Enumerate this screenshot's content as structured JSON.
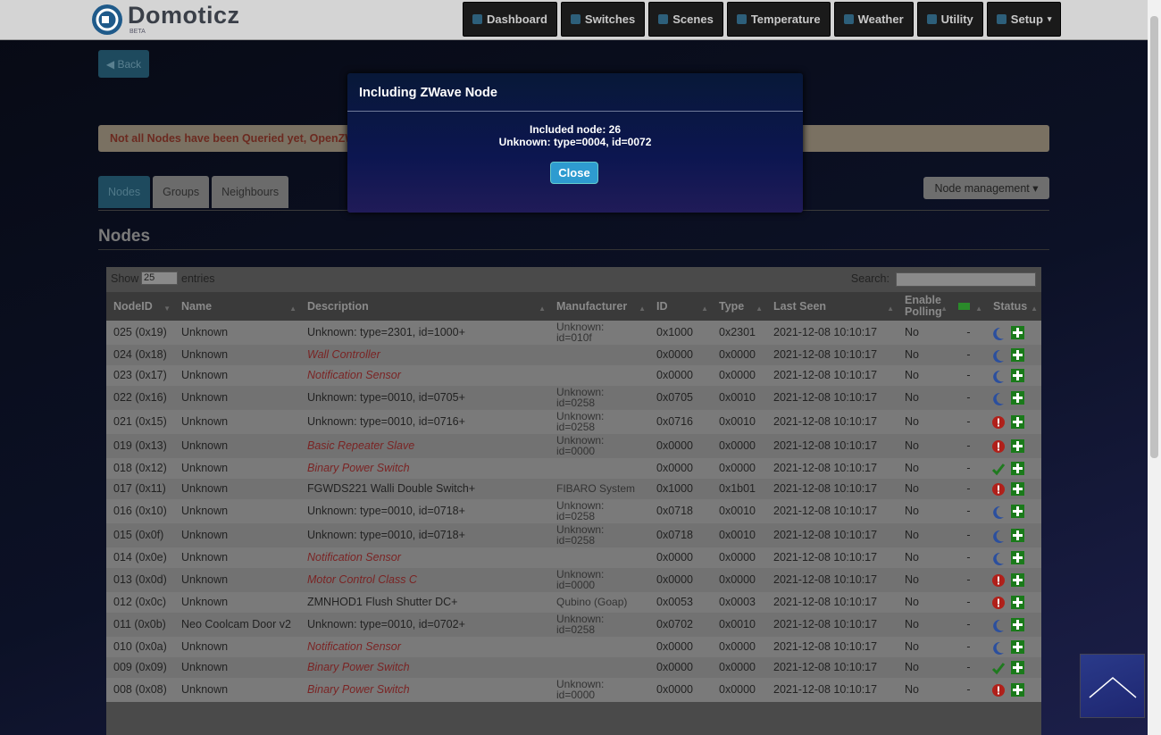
{
  "header": {
    "brand": "Domoticz",
    "badge": "BETA"
  },
  "nav": [
    "Dashboard",
    "Switches",
    "Scenes",
    "Temperature",
    "Weather",
    "Utility",
    "Setup"
  ],
  "page": {
    "back": "Back",
    "warning": "Not all Nodes have been Queried yet, OpenZW",
    "node_management": "Node management",
    "heading": "Nodes"
  },
  "tabs": [
    "Nodes",
    "Groups",
    "Neighbours"
  ],
  "table": {
    "show": "Show",
    "length": "25",
    "entries": "entries",
    "search": "Search:",
    "columns": [
      "NodeID",
      "Name",
      "Description",
      "Manufacturer",
      "ID",
      "Type",
      "Last Seen",
      "Enable Polling",
      null,
      "Status"
    ],
    "rows": [
      {
        "node_id": "025 (0x19)",
        "name": "Unknown",
        "description": "Unknown: type=2301, id=1000+",
        "manufacturer": "Unknown: id=010f",
        "id": "0x1000",
        "type": "0x2301",
        "last_seen": "2021-12-08 10:10:17",
        "polling": "No",
        "battery": "-",
        "status": "sleeping",
        "generic": false
      },
      {
        "node_id": "024 (0x18)",
        "name": "Unknown",
        "description": "Wall Controller",
        "manufacturer": null,
        "id": "0x0000",
        "type": "0x0000",
        "last_seen": "2021-12-08 10:10:17",
        "polling": "No",
        "battery": "-",
        "status": "sleeping",
        "generic": true
      },
      {
        "node_id": "023 (0x17)",
        "name": "Unknown",
        "description": "Notification Sensor",
        "manufacturer": null,
        "id": "0x0000",
        "type": "0x0000",
        "last_seen": "2021-12-08 10:10:17",
        "polling": "No",
        "battery": "-",
        "status": "sleeping",
        "generic": true
      },
      {
        "node_id": "022 (0x16)",
        "name": "Unknown",
        "description": "Unknown: type=0010, id=0705+",
        "manufacturer": "Unknown: id=0258",
        "id": "0x0705",
        "type": "0x0010",
        "last_seen": "2021-12-08 10:10:17",
        "polling": "No",
        "battery": "-",
        "status": "sleeping",
        "generic": false
      },
      {
        "node_id": "021 (0x15)",
        "name": "Unknown",
        "description": "Unknown: type=0010, id=0716+",
        "manufacturer": "Unknown: id=0258",
        "id": "0x0716",
        "type": "0x0010",
        "last_seen": "2021-12-08 10:10:17",
        "polling": "No",
        "battery": "-",
        "status": "dead",
        "generic": false
      },
      {
        "node_id": "019 (0x13)",
        "name": "Unknown",
        "description": "Basic Repeater Slave",
        "manufacturer": "Unknown: id=0000",
        "id": "0x0000",
        "type": "0x0000",
        "last_seen": "2021-12-08 10:10:17",
        "polling": "No",
        "battery": "-",
        "status": "dead",
        "generic": true
      },
      {
        "node_id": "018 (0x12)",
        "name": "Unknown",
        "description": "Binary Power Switch",
        "manufacturer": null,
        "id": "0x0000",
        "type": "0x0000",
        "last_seen": "2021-12-08 10:10:17",
        "polling": "No",
        "battery": "-",
        "status": "ok",
        "generic": true
      },
      {
        "node_id": "017 (0x11)",
        "name": "Unknown",
        "description": "FGWDS221 Walli Double Switch+",
        "manufacturer": "FIBARO System",
        "id": "0x1000",
        "type": "0x1b01",
        "last_seen": "2021-12-08 10:10:17",
        "polling": "No",
        "battery": "-",
        "status": "dead",
        "generic": false
      },
      {
        "node_id": "016 (0x10)",
        "name": "Unknown",
        "description": "Unknown: type=0010, id=0718+",
        "manufacturer": "Unknown: id=0258",
        "id": "0x0718",
        "type": "0x0010",
        "last_seen": "2021-12-08 10:10:17",
        "polling": "No",
        "battery": "-",
        "status": "sleeping",
        "generic": false
      },
      {
        "node_id": "015 (0x0f)",
        "name": "Unknown",
        "description": "Unknown: type=0010, id=0718+",
        "manufacturer": "Unknown: id=0258",
        "id": "0x0718",
        "type": "0x0010",
        "last_seen": "2021-12-08 10:10:17",
        "polling": "No",
        "battery": "-",
        "status": "sleeping",
        "generic": false
      },
      {
        "node_id": "014 (0x0e)",
        "name": "Unknown",
        "description": "Notification Sensor",
        "manufacturer": null,
        "id": "0x0000",
        "type": "0x0000",
        "last_seen": "2021-12-08 10:10:17",
        "polling": "No",
        "battery": "-",
        "status": "sleeping",
        "generic": true
      },
      {
        "node_id": "013 (0x0d)",
        "name": "Unknown",
        "description": "Motor Control Class C",
        "manufacturer": "Unknown: id=0000",
        "id": "0x0000",
        "type": "0x0000",
        "last_seen": "2021-12-08 10:10:17",
        "polling": "No",
        "battery": "-",
        "status": "dead",
        "generic": true
      },
      {
        "node_id": "012 (0x0c)",
        "name": "Unknown",
        "description": "ZMNHOD1 Flush Shutter DC+",
        "manufacturer": "Qubino (Goap)",
        "id": "0x0053",
        "type": "0x0003",
        "last_seen": "2021-12-08 10:10:17",
        "polling": "No",
        "battery": "-",
        "status": "dead",
        "generic": false
      },
      {
        "node_id": "011 (0x0b)",
        "name": "Neo Coolcam Door v2",
        "description": "Unknown: type=0010, id=0702+",
        "manufacturer": "Unknown: id=0258",
        "id": "0x0702",
        "type": "0x0010",
        "last_seen": "2021-12-08 10:10:17",
        "polling": "No",
        "battery": "-",
        "status": "sleeping",
        "generic": false
      },
      {
        "node_id": "010 (0x0a)",
        "name": "Unknown",
        "description": "Notification Sensor",
        "manufacturer": null,
        "id": "0x0000",
        "type": "0x0000",
        "last_seen": "2021-12-08 10:10:17",
        "polling": "No",
        "battery": "-",
        "status": "sleeping",
        "generic": true
      },
      {
        "node_id": "009 (0x09)",
        "name": "Unknown",
        "description": "Binary Power Switch",
        "manufacturer": null,
        "id": "0x0000",
        "type": "0x0000",
        "last_seen": "2021-12-08 10:10:17",
        "polling": "No",
        "battery": "-",
        "status": "ok",
        "generic": true
      },
      {
        "node_id": "008 (0x08)",
        "name": "Unknown",
        "description": "Binary Power Switch",
        "manufacturer": "Unknown: id=0000",
        "id": "0x0000",
        "type": "0x0000",
        "last_seen": "2021-12-08 10:10:17",
        "polling": "No",
        "battery": "-",
        "status": "dead",
        "generic": true
      }
    ]
  },
  "modal": {
    "title": "Including ZWave Node",
    "lines": [
      "Included node: 26",
      "Unknown: type=0004, id=0072"
    ],
    "button": "Close"
  }
}
